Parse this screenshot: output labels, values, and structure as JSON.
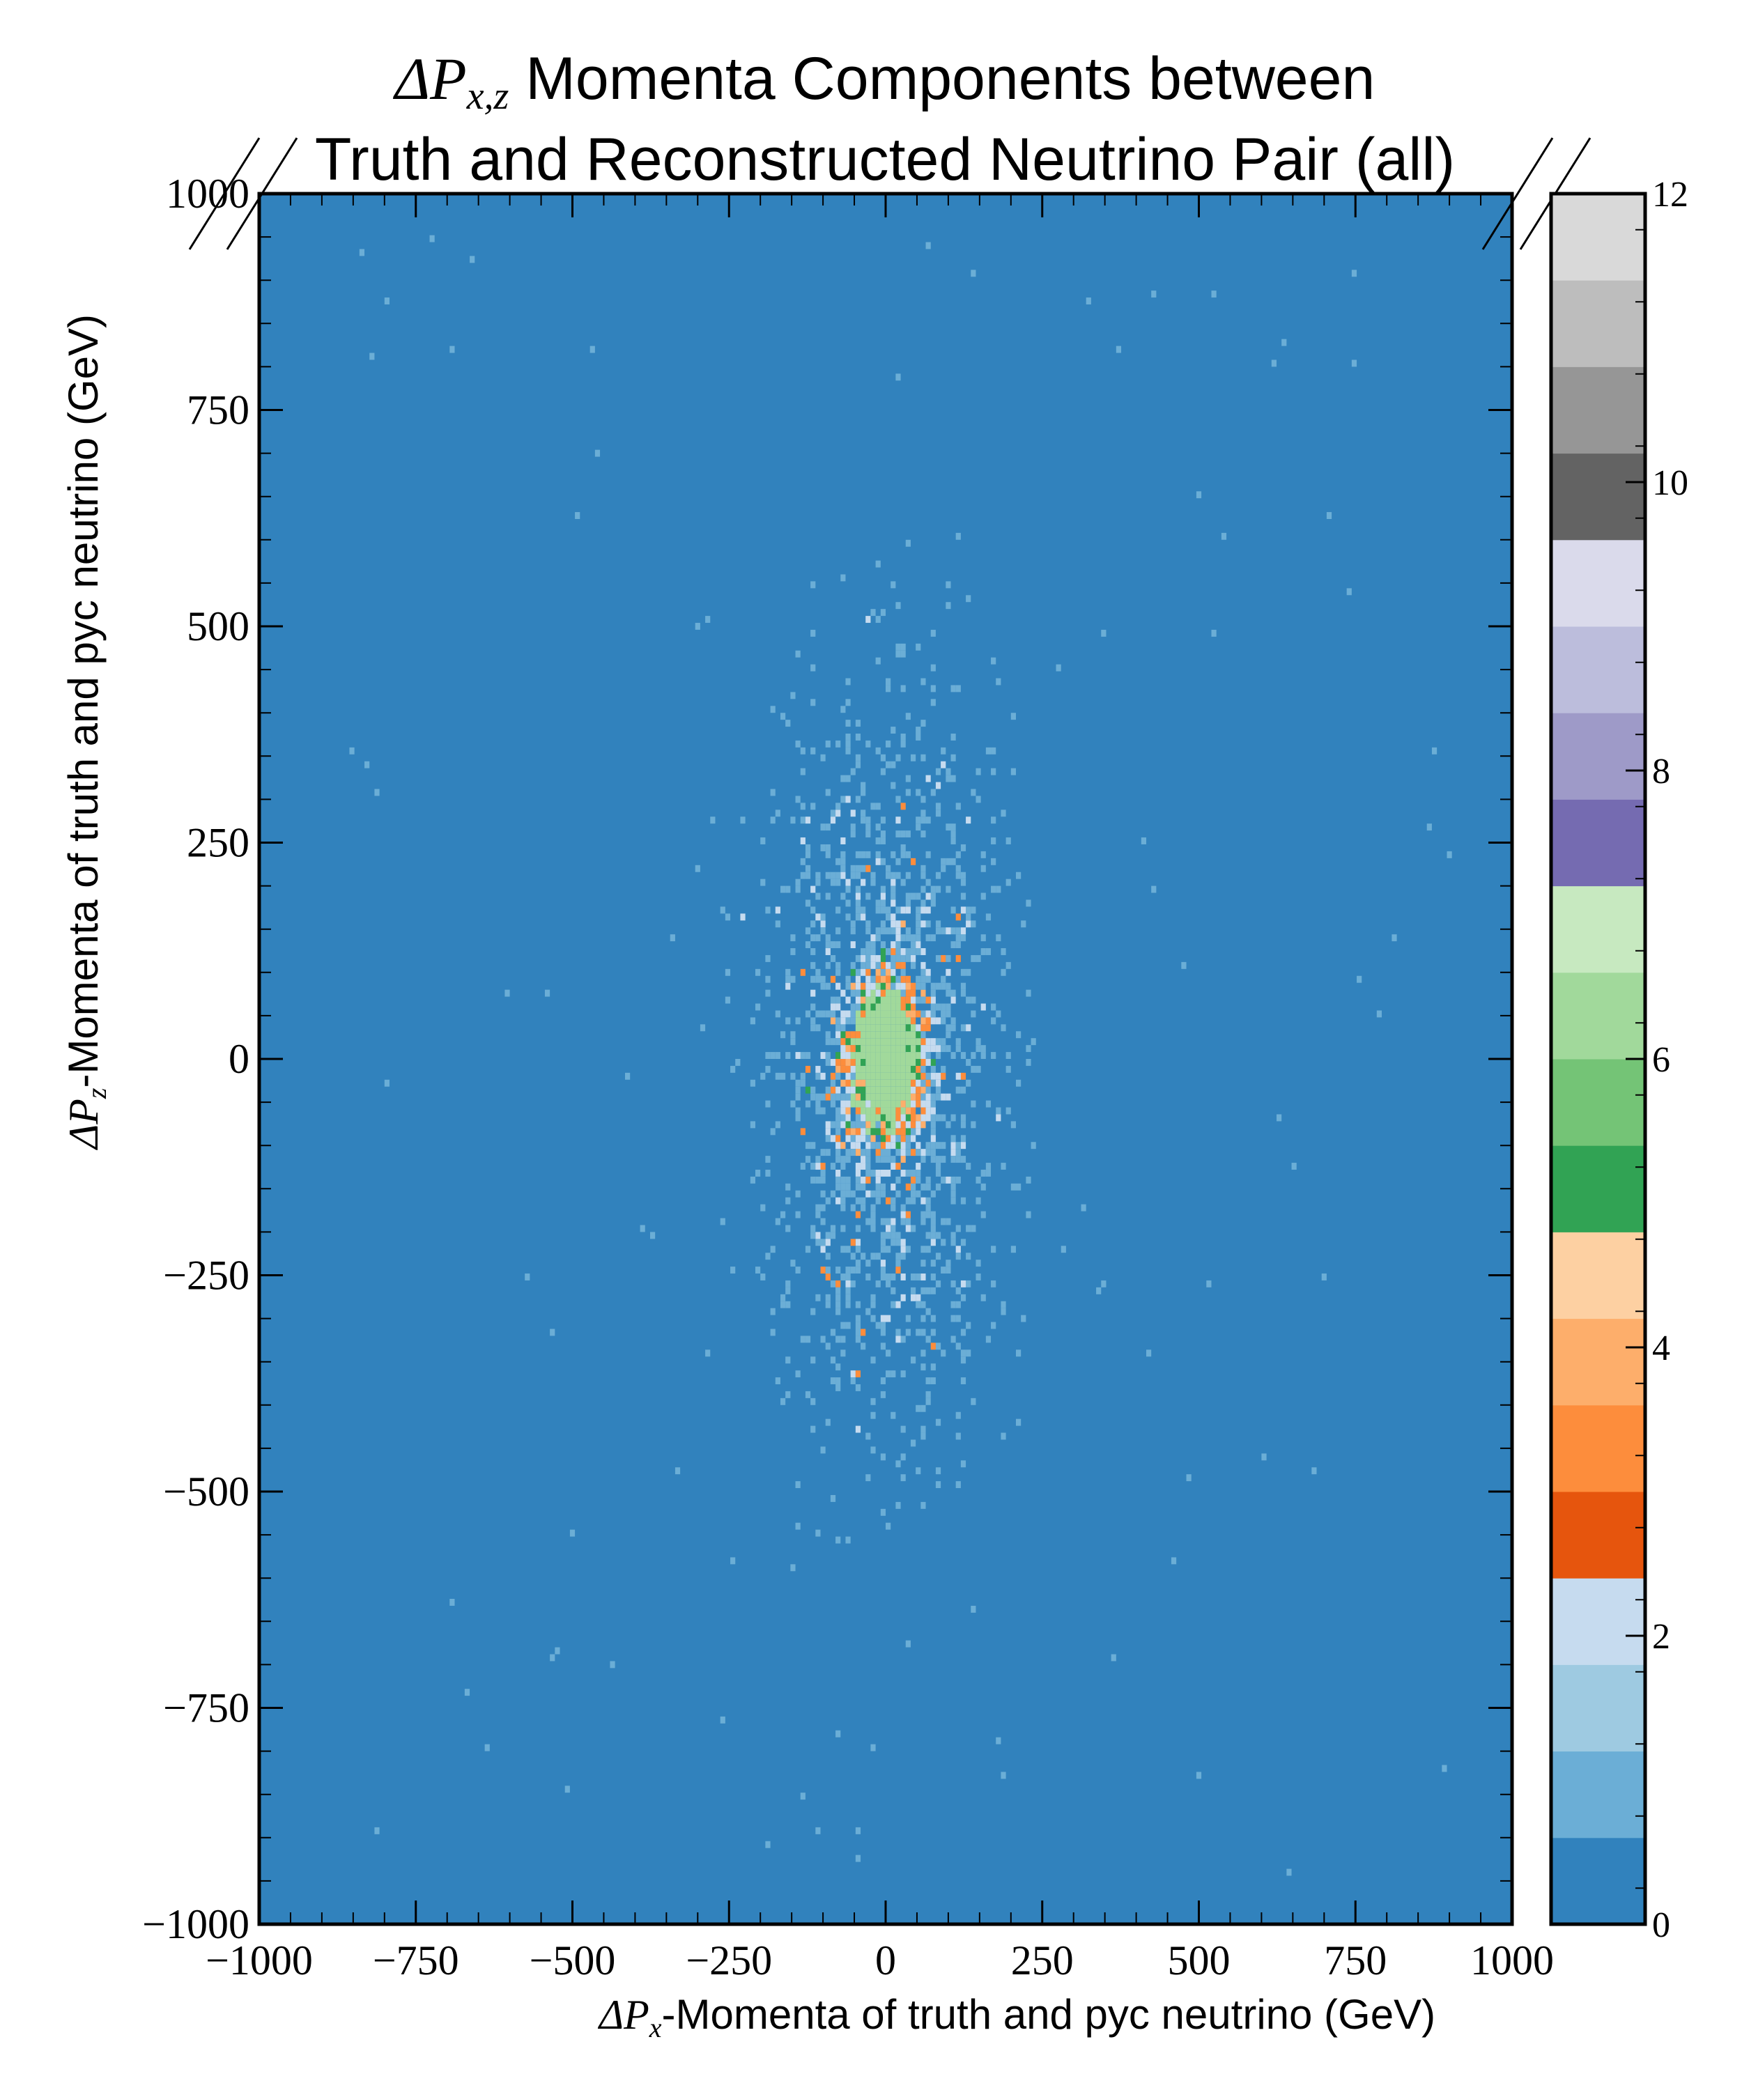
{
  "chart_data": {
    "type": "heatmap",
    "title_line1_math": "ΔP",
    "title_line1_sub": "x,z",
    "title_line1_text": " Momenta Components between",
    "title_line2": "Truth and Reconstructed Neutrino Pair (all)",
    "xlabel_math": "ΔP",
    "xlabel_sub": "x",
    "xlabel_text": "-Momenta of truth and pyc neutrino (GeV)",
    "ylabel_math": "ΔP",
    "ylabel_sub": "z",
    "ylabel_text": "-Momenta of truth and pyc neutrino (GeV)",
    "xlim": [
      -1000,
      1000
    ],
    "ylim": [
      -1000,
      1000
    ],
    "x_ticks": [
      "−1000",
      "−750",
      "−500",
      "−250",
      "0",
      "250",
      "500",
      "750",
      "1000"
    ],
    "y_ticks": [
      "1000",
      "750",
      "500",
      "250",
      "0",
      "−250",
      "−500",
      "−750",
      "−1000"
    ],
    "x_tick_values": [
      -1000,
      -750,
      -500,
      -250,
      0,
      250,
      500,
      750,
      1000
    ],
    "y_tick_values": [
      1000,
      750,
      500,
      250,
      0,
      -250,
      -500,
      -750,
      -1000
    ],
    "colorbar": {
      "range": [
        0,
        12
      ],
      "ticks": [
        "0",
        "2",
        "4",
        "6",
        "8",
        "10",
        "12"
      ],
      "tick_values": [
        0,
        2,
        4,
        6,
        8,
        10,
        12
      ],
      "colors": [
        "#3182bd",
        "#6baed6",
        "#9ecae1",
        "#c6dbef",
        "#e6550d",
        "#fd8d3c",
        "#fdae6b",
        "#fdd0a2",
        "#31a354",
        "#74c476",
        "#a1d99b",
        "#c7e9c0",
        "#756bb1",
        "#9e9ac8",
        "#bcbddc",
        "#dadaeb",
        "#636363",
        "#969696",
        "#bdbdbd",
        "#d9d9d9"
      ]
    },
    "distribution": {
      "center_x": 0,
      "center_z": 0,
      "core_sigma_x": 30,
      "core_sigma_z": 45,
      "halo_sigma_x": 90,
      "halo_sigma_z": 200,
      "max_count": 6
    }
  }
}
